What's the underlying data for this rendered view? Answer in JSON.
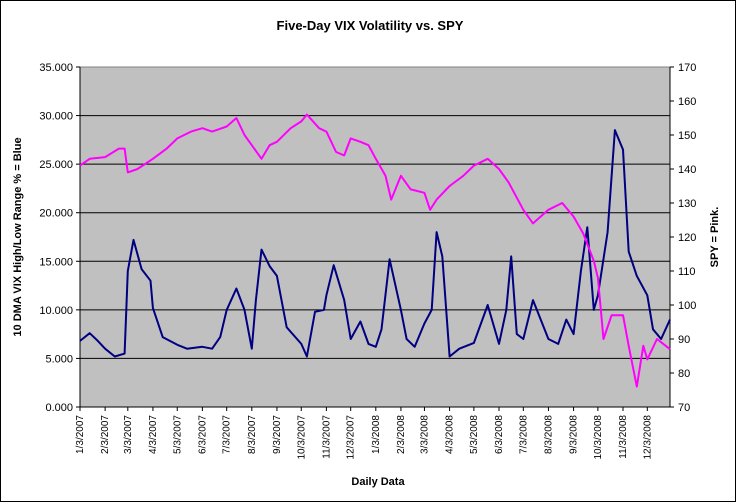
{
  "chart_data": {
    "type": "line",
    "title": "Five-Day VIX Volatility vs. SPY",
    "xlabel": "Daily Data",
    "ylabel_left": "10 DMA VIX High/Low Range % = Blue",
    "ylabel_right": "SPY = Pink.",
    "ylim_left": [
      0,
      35
    ],
    "ylim_right": [
      70,
      170
    ],
    "left_ticks": [
      "0.000",
      "5.000",
      "10.000",
      "15.000",
      "20.000",
      "25.000",
      "30.000",
      "35.000"
    ],
    "right_ticks": [
      "70",
      "80",
      "90",
      "100",
      "110",
      "120",
      "130",
      "140",
      "150",
      "160",
      "170"
    ],
    "x_ticks": [
      "1/3/2007",
      "2/3/2007",
      "3/3/2007",
      "4/3/2007",
      "5/3/2007",
      "6/3/2007",
      "7/3/2007",
      "8/3/2007",
      "9/3/2007",
      "10/3/2007",
      "11/3/2007",
      "12/3/2007",
      "1/3/2008",
      "2/3/2008",
      "3/3/2008",
      "4/3/2008",
      "5/3/2008",
      "6/3/2008",
      "7/3/2008",
      "8/3/2008",
      "9/3/2008",
      "10/3/2008",
      "11/3/2008",
      "12/3/2008"
    ],
    "grid": true,
    "plot_background": "#c0c0c0",
    "series": [
      {
        "axis": "left",
        "color": "#000080",
        "points": [
          [
            "1/3/2007",
            6.8
          ],
          [
            "1/15/2007",
            7.6
          ],
          [
            "1/25/2007",
            6.8
          ],
          [
            "2/3/2007",
            6.0
          ],
          [
            "2/15/2007",
            5.2
          ],
          [
            "2/27/2007",
            5.5
          ],
          [
            "3/3/2007",
            14.0
          ],
          [
            "3/10/2007",
            17.2
          ],
          [
            "3/20/2007",
            14.2
          ],
          [
            "3/31/2007",
            13.0
          ],
          [
            "4/3/2007",
            10.2
          ],
          [
            "4/15/2007",
            7.2
          ],
          [
            "5/3/2007",
            6.4
          ],
          [
            "5/15/2007",
            6.0
          ],
          [
            "6/3/2007",
            6.2
          ],
          [
            "6/15/2007",
            6.0
          ],
          [
            "6/25/2007",
            7.2
          ],
          [
            "7/3/2007",
            10.0
          ],
          [
            "7/15/2007",
            12.2
          ],
          [
            "7/25/2007",
            10.0
          ],
          [
            "8/3/2007",
            6.0
          ],
          [
            "8/8/2007",
            11.0
          ],
          [
            "8/15/2007",
            16.2
          ],
          [
            "8/25/2007",
            14.5
          ],
          [
            "9/3/2007",
            13.5
          ],
          [
            "9/15/2007",
            8.2
          ],
          [
            "10/3/2007",
            6.5
          ],
          [
            "10/10/2007",
            5.2
          ],
          [
            "10/20/2007",
            9.8
          ],
          [
            "10/31/2007",
            10.0
          ],
          [
            "11/3/2007",
            11.5
          ],
          [
            "11/12/2007",
            14.6
          ],
          [
            "11/25/2007",
            11.0
          ],
          [
            "12/3/2007",
            7.0
          ],
          [
            "12/15/2007",
            8.8
          ],
          [
            "12/25/2007",
            6.5
          ],
          [
            "1/3/2008",
            6.2
          ],
          [
            "1/10/2008",
            8.0
          ],
          [
            "1/20/2008",
            15.2
          ],
          [
            "2/3/2008",
            10.0
          ],
          [
            "2/10/2008",
            7.0
          ],
          [
            "2/20/2008",
            6.2
          ],
          [
            "3/3/2008",
            8.6
          ],
          [
            "3/12/2008",
            10.0
          ],
          [
            "3/18/2008",
            18.0
          ],
          [
            "3/25/2008",
            15.5
          ],
          [
            "4/3/2008",
            5.2
          ],
          [
            "4/15/2008",
            6.0
          ],
          [
            "5/3/2008",
            6.6
          ],
          [
            "5/20/2008",
            10.5
          ],
          [
            "6/3/2008",
            6.5
          ],
          [
            "6/12/2008",
            10.0
          ],
          [
            "6/18/2008",
            15.5
          ],
          [
            "6/25/2008",
            7.5
          ],
          [
            "7/3/2008",
            7.0
          ],
          [
            "7/15/2008",
            11.0
          ],
          [
            "8/3/2008",
            7.0
          ],
          [
            "8/15/2008",
            6.5
          ],
          [
            "8/25/2008",
            9.0
          ],
          [
            "9/3/2008",
            7.5
          ],
          [
            "9/12/2008",
            14.0
          ],
          [
            "9/20/2008",
            18.5
          ],
          [
            "9/28/2008",
            10.0
          ],
          [
            "10/3/2008",
            11.5
          ],
          [
            "10/15/2008",
            18.0
          ],
          [
            "10/24/2008",
            28.5
          ],
          [
            "11/3/2008",
            26.5
          ],
          [
            "11/10/2008",
            16.0
          ],
          [
            "11/20/2008",
            13.5
          ],
          [
            "12/3/2008",
            11.5
          ],
          [
            "12/10/2008",
            8.0
          ],
          [
            "12/20/2008",
            7.0
          ],
          [
            "12/31/2008",
            9.0
          ]
        ]
      },
      {
        "axis": "right",
        "color": "#ff00ff",
        "points": [
          [
            "1/3/2007",
            141.0
          ],
          [
            "1/15/2007",
            143.0
          ],
          [
            "2/3/2007",
            143.5
          ],
          [
            "2/20/2007",
            146.0
          ],
          [
            "2/27/2007",
            146.0
          ],
          [
            "3/3/2007",
            139.0
          ],
          [
            "3/15/2007",
            140.0
          ],
          [
            "4/3/2007",
            143.0
          ],
          [
            "4/20/2007",
            146.0
          ],
          [
            "5/3/2007",
            149.0
          ],
          [
            "5/20/2007",
            151.0
          ],
          [
            "6/3/2007",
            152.0
          ],
          [
            "6/15/2007",
            151.0
          ],
          [
            "7/3/2007",
            152.5
          ],
          [
            "7/15/2007",
            155.0
          ],
          [
            "7/25/2007",
            150.0
          ],
          [
            "8/3/2007",
            147.0
          ],
          [
            "8/15/2007",
            143.0
          ],
          [
            "8/25/2007",
            147.0
          ],
          [
            "9/3/2007",
            148.0
          ],
          [
            "9/20/2007",
            152.0
          ],
          [
            "10/3/2007",
            154.0
          ],
          [
            "10/10/2007",
            156.0
          ],
          [
            "10/25/2007",
            152.0
          ],
          [
            "11/3/2007",
            151.0
          ],
          [
            "11/15/2007",
            145.0
          ],
          [
            "11/25/2007",
            144.0
          ],
          [
            "12/3/2007",
            149.0
          ],
          [
            "12/15/2007",
            148.0
          ],
          [
            "12/25/2007",
            147.0
          ],
          [
            "1/3/2008",
            143.0
          ],
          [
            "1/15/2008",
            138.0
          ],
          [
            "1/22/2008",
            131.0
          ],
          [
            "2/3/2008",
            138.0
          ],
          [
            "2/15/2008",
            134.0
          ],
          [
            "3/3/2008",
            133.0
          ],
          [
            "3/10/2008",
            128.0
          ],
          [
            "3/18/2008",
            131.0
          ],
          [
            "4/3/2008",
            135.0
          ],
          [
            "4/20/2008",
            138.0
          ],
          [
            "5/3/2008",
            141.0
          ],
          [
            "5/20/2008",
            143.0
          ],
          [
            "6/3/2008",
            140.0
          ],
          [
            "6/15/2008",
            136.0
          ],
          [
            "7/3/2008",
            128.0
          ],
          [
            "7/15/2008",
            124.0
          ],
          [
            "8/3/2008",
            128.0
          ],
          [
            "8/20/2008",
            130.0
          ],
          [
            "9/3/2008",
            126.0
          ],
          [
            "9/15/2008",
            121.0
          ],
          [
            "9/28/2008",
            113.0
          ],
          [
            "10/3/2008",
            108.0
          ],
          [
            "10/10/2008",
            90.0
          ],
          [
            "10/20/2008",
            97.0
          ],
          [
            "11/3/2008",
            97.0
          ],
          [
            "11/10/2008",
            88.0
          ],
          [
            "11/20/2008",
            76.0
          ],
          [
            "11/28/2008",
            88.0
          ],
          [
            "12/3/2008",
            84.0
          ],
          [
            "12/15/2008",
            90.0
          ],
          [
            "12/31/2008",
            87.0
          ]
        ]
      }
    ]
  }
}
